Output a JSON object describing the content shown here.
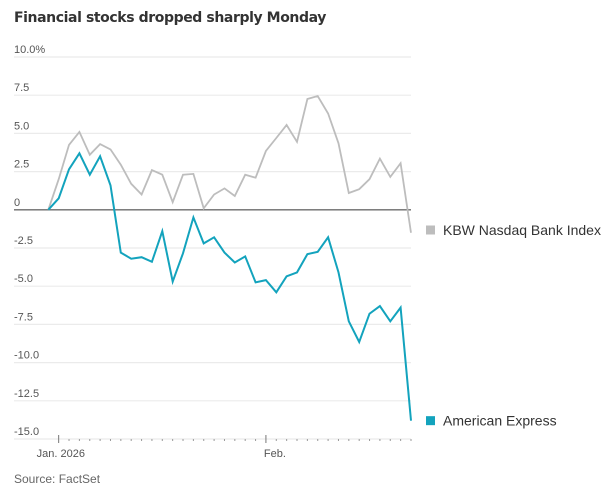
{
  "chart_data": {
    "type": "line",
    "title": "Financial stocks dropped sharply Monday",
    "source": "Source: FactSet",
    "xlabel": "",
    "ylabel": "",
    "ylim": [
      -15,
      10
    ],
    "y_ticks": [
      {
        "value": 10,
        "label": "10.0%"
      },
      {
        "value": 7.5,
        "label": "7.5"
      },
      {
        "value": 5,
        "label": "5.0"
      },
      {
        "value": 2.5,
        "label": "2.5"
      },
      {
        "value": 0,
        "label": "0"
      },
      {
        "value": -2.5,
        "label": "-2.5"
      },
      {
        "value": -5,
        "label": "-5.0"
      },
      {
        "value": -7.5,
        "label": "-7.5"
      },
      {
        "value": -10,
        "label": "-10.0"
      },
      {
        "value": -12.5,
        "label": "-12.5"
      },
      {
        "value": -15,
        "label": "-15.0"
      }
    ],
    "x": [
      "2025-12-31",
      "2026-01-02",
      "2026-01-05",
      "2026-01-06",
      "2026-01-07",
      "2026-01-08",
      "2026-01-09",
      "2026-01-12",
      "2026-01-13",
      "2026-01-14",
      "2026-01-15",
      "2026-01-16",
      "2026-01-20",
      "2026-01-21",
      "2026-01-22",
      "2026-01-23",
      "2026-01-26",
      "2026-01-27",
      "2026-01-28",
      "2026-01-29",
      "2026-01-30",
      "2026-02-02",
      "2026-02-03",
      "2026-02-04",
      "2026-02-05",
      "2026-02-06",
      "2026-02-09",
      "2026-02-10",
      "2026-02-11",
      "2026-02-12",
      "2026-02-13",
      "2026-02-17",
      "2026-02-18",
      "2026-02-19",
      "2026-02-20",
      "2026-02-23"
    ],
    "x_major_ticks": [
      {
        "index": 1,
        "label": "Jan. 2026"
      },
      {
        "index": 21,
        "label": "Feb."
      }
    ],
    "grid": true,
    "legend_placement": "right, at line ends",
    "series": [
      {
        "name": "KBW Nasdaq Bank Index",
        "color": "#bdbdbd",
        "values": [
          0,
          2.0,
          4.25,
          5.1,
          3.6,
          4.3,
          3.95,
          2.95,
          1.7,
          1.0,
          2.6,
          2.3,
          0.5,
          2.3,
          2.35,
          0.1,
          1.0,
          1.4,
          0.9,
          2.3,
          2.1,
          3.85,
          4.7,
          5.55,
          4.45,
          7.25,
          7.45,
          6.3,
          4.35,
          1.1,
          1.35,
          2.0,
          3.35,
          2.15,
          3.05,
          -1.5
        ]
      },
      {
        "name": "American Express",
        "color": "#13a3bd",
        "values": [
          0,
          0.75,
          2.65,
          3.7,
          2.3,
          3.5,
          1.6,
          -2.8,
          -3.2,
          -3.1,
          -3.4,
          -1.4,
          -4.7,
          -2.85,
          -0.5,
          -2.2,
          -1.8,
          -2.8,
          -3.45,
          -3.05,
          -4.75,
          -4.6,
          -5.4,
          -4.35,
          -4.1,
          -2.9,
          -2.75,
          -1.8,
          -4.1,
          -7.3,
          -8.65,
          -6.8,
          -6.3,
          -7.3,
          -6.4,
          -13.8
        ]
      }
    ]
  }
}
